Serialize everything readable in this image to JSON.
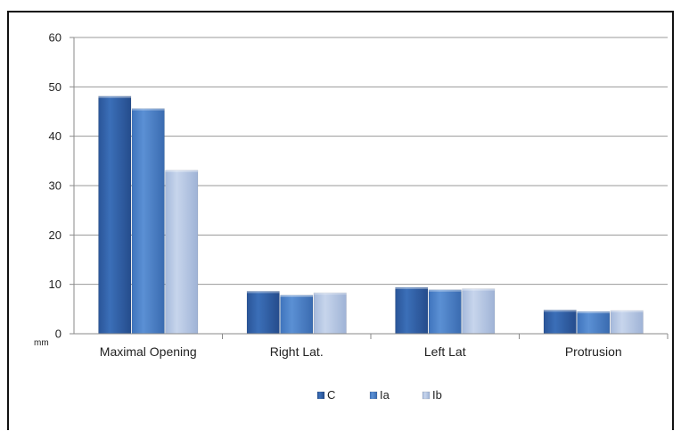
{
  "chart_data": {
    "type": "bar",
    "title": "",
    "xlabel": "",
    "ylabel": "mm",
    "ylim": [
      0,
      60
    ],
    "yticks": [
      "0",
      "10",
      "20",
      "30",
      "40",
      "50",
      "60"
    ],
    "grid": true,
    "legend_position": "bottom",
    "categories": [
      "Maximal Opening",
      "Right Lat.",
      "Left Lat",
      "Protrusion"
    ],
    "series": [
      {
        "name": "C",
        "color": "#2f5fa8",
        "values": [
          48.1,
          8.6,
          9.4,
          4.8
        ]
      },
      {
        "name": "Ia",
        "color": "#4a80c8",
        "values": [
          45.6,
          7.8,
          8.9,
          4.5
        ]
      },
      {
        "name": "Ib",
        "color": "#b4c6e4",
        "values": [
          33.1,
          8.3,
          9.1,
          4.7
        ]
      }
    ]
  }
}
